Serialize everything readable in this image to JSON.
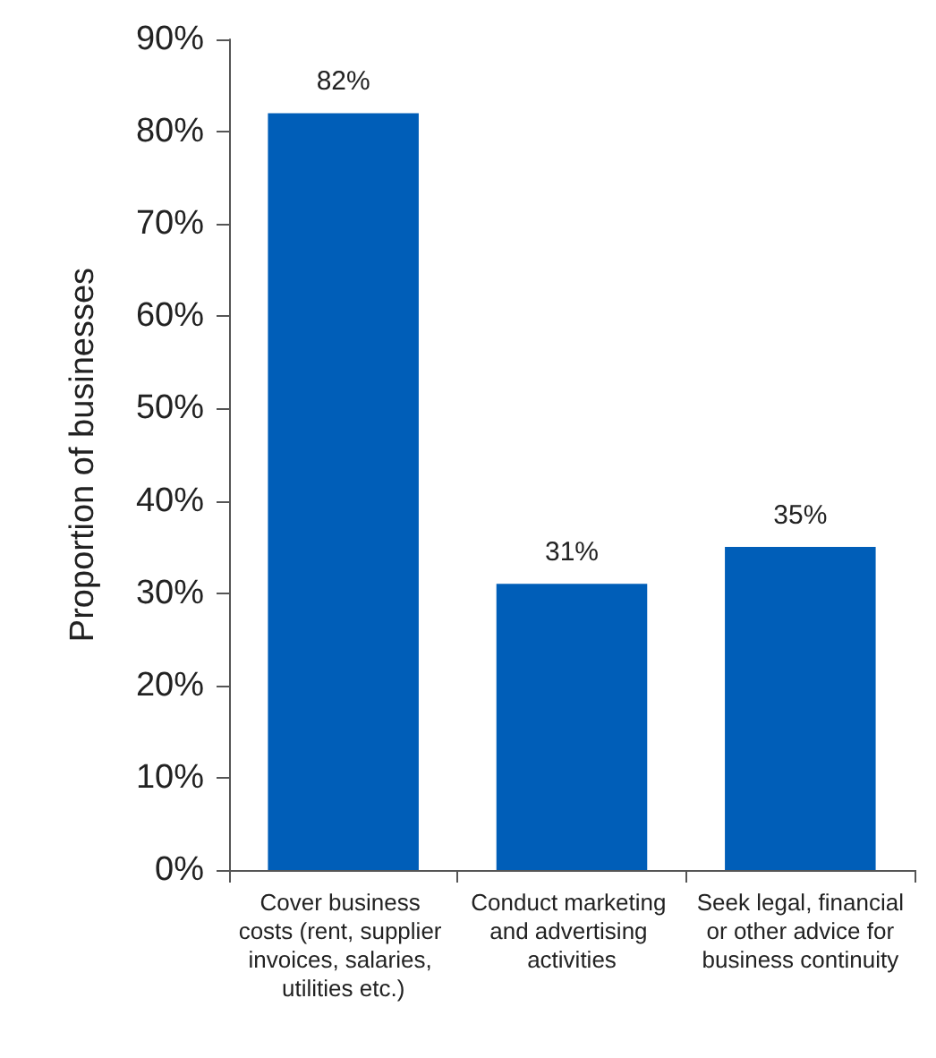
{
  "chart_data": {
    "type": "bar",
    "ylabel": "Proportion of businesses",
    "categories": [
      "Cover business costs (rent, supplier invoices, salaries, utilities etc.)",
      "Conduct marketing and advertising activities",
      "Seek legal, financial or other advice for business continuity"
    ],
    "values": [
      82,
      31,
      35
    ],
    "color": "#005eb8",
    "value_labels": [
      "82%",
      "31%",
      "35%"
    ],
    "ylim": [
      0,
      90
    ],
    "yticks": [
      {
        "value": 0,
        "label": "0%"
      },
      {
        "value": 10,
        "label": "10%"
      },
      {
        "value": 20,
        "label": "20%"
      },
      {
        "value": 30,
        "label": "30%"
      },
      {
        "value": 40,
        "label": "40%"
      },
      {
        "value": 50,
        "label": "50%"
      },
      {
        "value": 60,
        "label": "60%"
      },
      {
        "value": 70,
        "label": "70%"
      },
      {
        "value": 80,
        "label": "80%"
      },
      {
        "value": 90,
        "label": "90%"
      }
    ],
    "grid": false
  }
}
